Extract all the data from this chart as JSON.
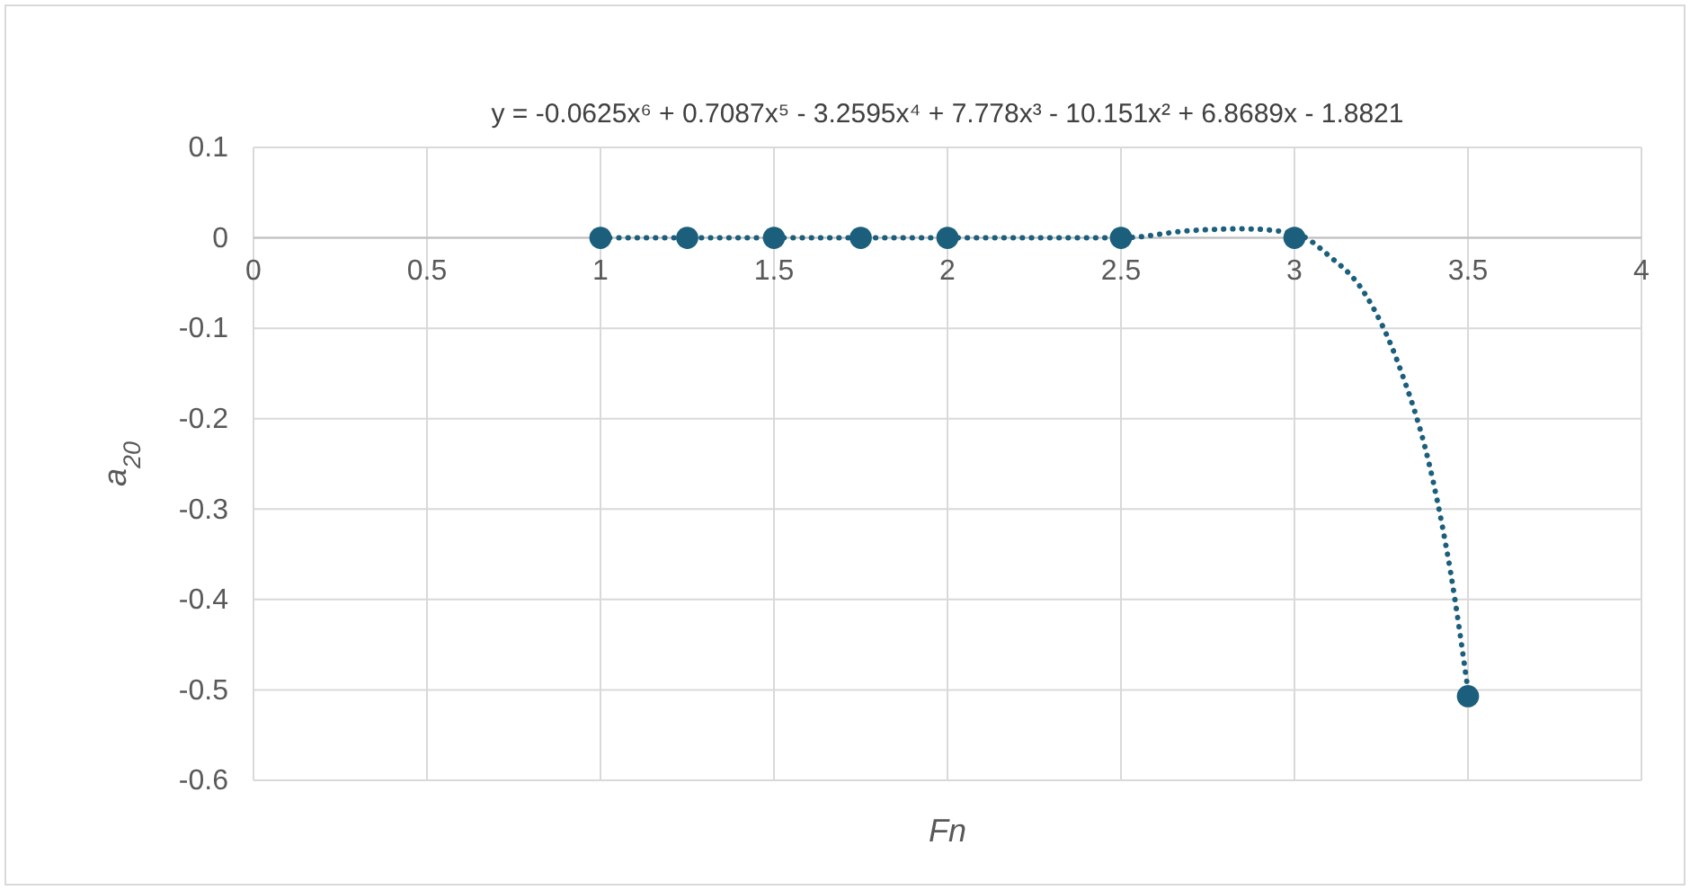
{
  "chart_data": {
    "type": "scatter",
    "xlabel": "Fn",
    "ylabel": "a$_{20}$",
    "annotations": [
      "y = -0.0625x⁶ + 0.7087x⁵ - 3.2595x⁴ + 7.778x³ - 10.151x² + 6.8689x - 1.8821"
    ],
    "xlim": [
      0,
      4
    ],
    "xticks": [
      0,
      0.5,
      1,
      1.5,
      2,
      2.5,
      3,
      3.5,
      4
    ],
    "ylim": [
      -0.6,
      0.1
    ],
    "yticks": [
      -0.6,
      -0.5,
      -0.4,
      -0.3,
      -0.2,
      -0.1,
      0,
      0.1
    ],
    "grid": true,
    "marker": "circle",
    "series": [
      {
        "color": "#1b5f7c",
        "x": [
          1,
          1.25,
          1.5,
          1.75,
          2,
          2.5,
          3,
          3.5
        ],
        "values": [
          0,
          0,
          0,
          0,
          0,
          0,
          0,
          -0.507
        ]
      },
      {
        "type": "line",
        "color": "#1b5f7c",
        "line_style": "dotted",
        "marker": "none",
        "x": [
          1,
          1.5,
          2,
          2.5,
          2.7,
          2.85,
          3,
          3.1,
          3.2,
          3.3,
          3.4,
          3.45,
          3.5
        ],
        "values": [
          0,
          0,
          0,
          0,
          0.008,
          0.01,
          0.005,
          -0.02,
          -0.06,
          -0.14,
          -0.27,
          -0.37,
          -0.5
        ]
      }
    ]
  }
}
